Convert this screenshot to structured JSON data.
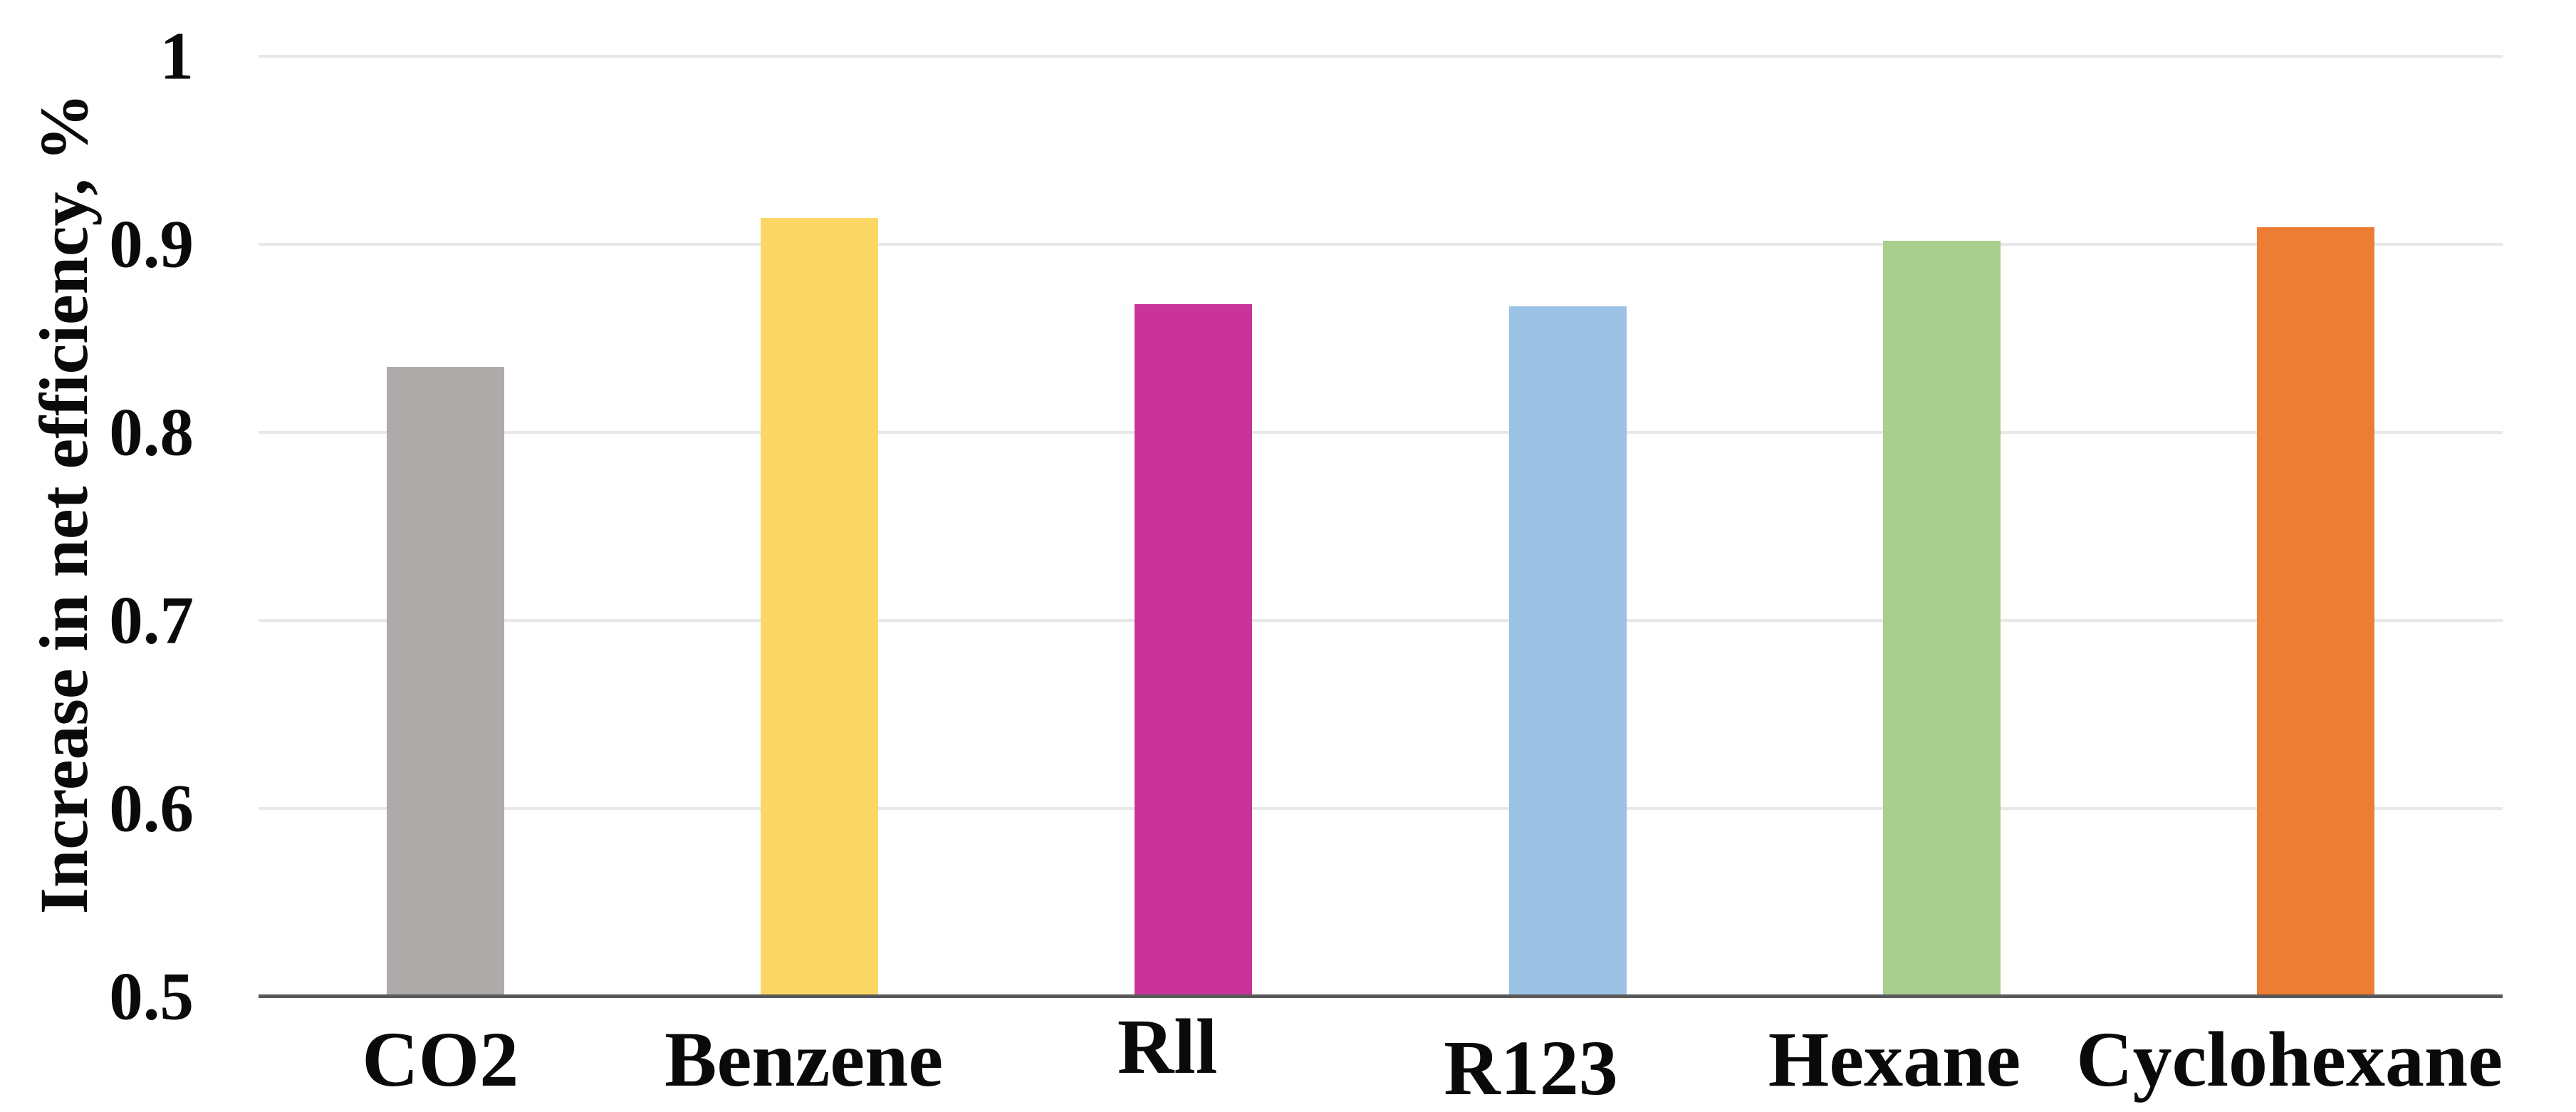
{
  "chart_data": {
    "type": "bar",
    "title": "",
    "xlabel": "",
    "ylabel": "Increase in net efficiency, %",
    "categories": [
      "CO2",
      "Benzene",
      "Rll",
      "R123",
      "Hexane",
      "Cyclohexane"
    ],
    "values": [
      0.835,
      0.914,
      0.868,
      0.867,
      0.902,
      0.909
    ],
    "bar_colors": [
      "#aeaaa9",
      "#fcd765",
      "#c9339a",
      "#9cc3e5",
      "#a8cf8e",
      "#ec7d33"
    ],
    "ylim": [
      0.5,
      1.0
    ],
    "yticks": [
      1,
      0.9,
      0.8,
      0.7,
      0.6,
      0.5
    ],
    "ytick_labels": [
      "1",
      "0.9",
      "0.8",
      "0.7",
      "0.6",
      "0.5"
    ],
    "grid": "horizontal-only",
    "legend": "none",
    "colors": {
      "gridline": "#e8e8e8",
      "axis_line": "#595959",
      "text": "#0a0a0a",
      "background": "#ffffff"
    }
  }
}
